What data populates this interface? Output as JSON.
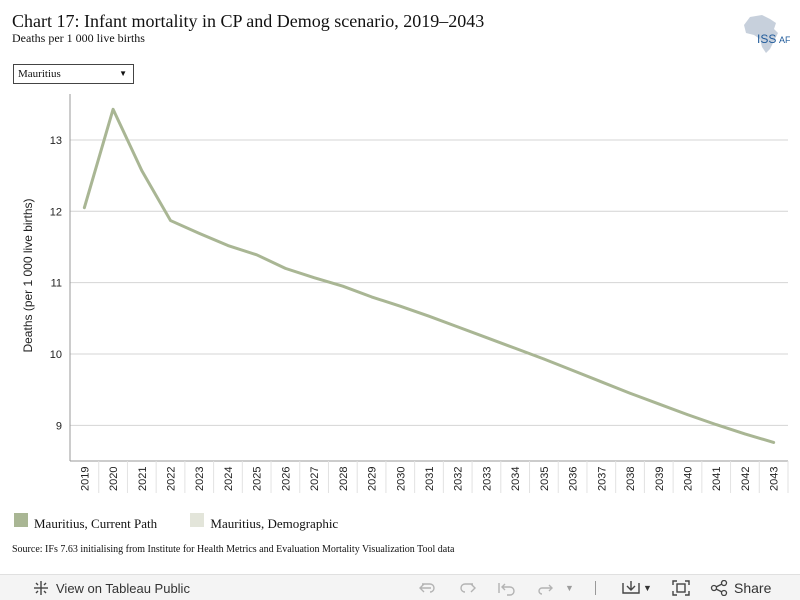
{
  "header": {
    "title": "Chart 17: Infant mortality in CP and Demog scenario, 2019–2043",
    "subtitle": "Deaths per 1 000 live births"
  },
  "logo": {
    "text": "ISS",
    "text2": "AF",
    "icon": "africa-map-icon"
  },
  "filter": {
    "selected": "Mauritius",
    "icon": "caret-down-icon"
  },
  "legend": {
    "items": [
      {
        "label": "Mauritius, Current Path",
        "color": "#a9b694"
      },
      {
        "label": "Mauritius, Demographic",
        "color": "#e3e5da"
      }
    ]
  },
  "source": "Source: IFs 7.63 initialising from Institute for Health Metrics and Evaluation Mortality Visualization Tool data",
  "toolbar": {
    "view_label": "View on Tableau Public",
    "share_label": "Share",
    "icons": [
      "tableau-icon",
      "undo-icon",
      "redo-icon",
      "revert-icon",
      "refresh-icon",
      "download-icon",
      "fullscreen-icon",
      "share-icon"
    ]
  },
  "chart_data": {
    "type": "line",
    "ylabel": "Deaths (per 1 000 live births)",
    "xlabel": "",
    "x": [
      "2019",
      "2020",
      "2021",
      "2022",
      "2023",
      "2024",
      "2025",
      "2026",
      "2027",
      "2028",
      "2029",
      "2030",
      "2031",
      "2032",
      "2033",
      "2034",
      "2035",
      "2036",
      "2037",
      "2038",
      "2039",
      "2040",
      "2041",
      "2042",
      "2043"
    ],
    "ylim": [
      8.5,
      13.7
    ],
    "yticks": [
      9,
      10,
      11,
      12,
      13
    ],
    "grid": true,
    "legend_position": "bottom",
    "series": [
      {
        "name": "Mauritius, Current Path",
        "color": "#a9b694",
        "values": [
          12.05,
          13.43,
          12.57,
          11.87,
          11.69,
          11.52,
          11.39,
          11.2,
          11.07,
          10.95,
          10.8,
          10.67,
          10.53,
          10.38,
          10.23,
          10.08,
          9.93,
          9.77,
          9.61,
          9.45,
          9.3,
          9.15,
          9.01,
          8.88,
          8.76
        ]
      }
    ]
  }
}
